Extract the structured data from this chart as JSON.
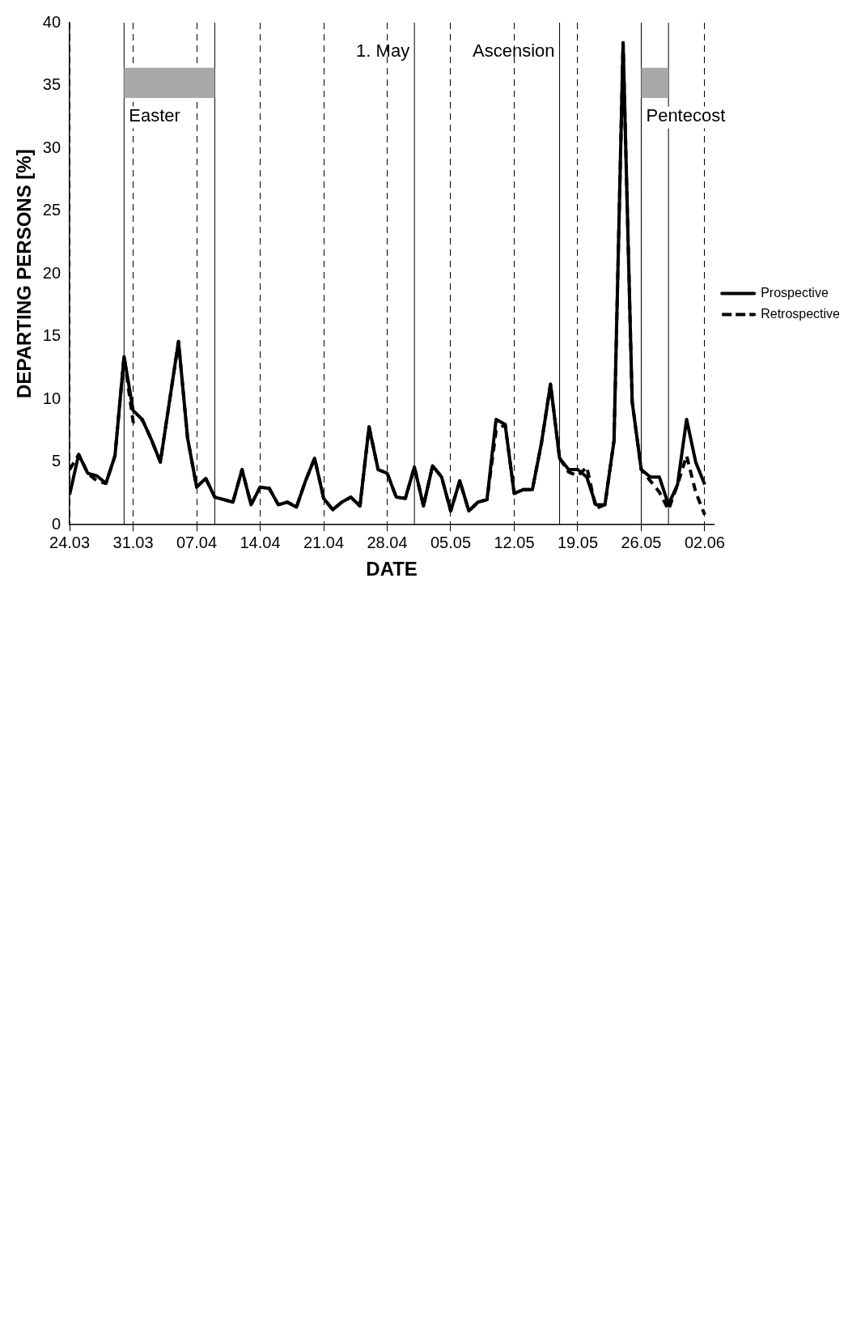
{
  "chart_data": {
    "type": "line",
    "xlabel": "DATE",
    "ylabel": "DEPARTING PERSONS [%]",
    "x": [
      "--03-24",
      "--03-25",
      "--03-26",
      "--03-27",
      "--03-28",
      "--03-29",
      "--03-30",
      "--03-31",
      "--04-01",
      "--04-02",
      "--04-03",
      "--04-04",
      "--04-05",
      "--04-06",
      "--04-07",
      "--04-08",
      "--04-09",
      "--04-10",
      "--04-11",
      "--04-12",
      "--04-13",
      "--04-14",
      "--04-15",
      "--04-16",
      "--04-17",
      "--04-18",
      "--04-19",
      "--04-20",
      "--04-21",
      "--04-22",
      "--04-23",
      "--04-24",
      "--04-25",
      "--04-26",
      "--04-27",
      "--04-28",
      "--04-29",
      "--04-30",
      "--05-01",
      "--05-02",
      "--05-03",
      "--05-04",
      "--05-05",
      "--05-06",
      "--05-07",
      "--05-08",
      "--05-09",
      "--05-10",
      "--05-11",
      "--05-12",
      "--05-13",
      "--05-14",
      "--05-15",
      "--05-16",
      "--05-17",
      "--05-18",
      "--05-19",
      "--05-20",
      "--05-21",
      "--05-22",
      "--05-23",
      "--05-24",
      "--05-25",
      "--05-26",
      "--05-27",
      "--05-28",
      "--05-29",
      "--05-30",
      "--05-31",
      "--06-01",
      "--06-02"
    ],
    "series": [
      {
        "name": "Prospective",
        "color": "#000000",
        "line_style": "solid",
        "values": [
          2.4,
          5.6,
          4.1,
          3.9,
          3.3,
          5.5,
          13.4,
          9.1,
          8.4,
          6.8,
          5.0,
          9.8,
          14.6,
          6.9,
          3.0,
          3.7,
          2.2,
          2.0,
          1.8,
          4.4,
          1.6,
          3.0,
          2.9,
          1.6,
          1.8,
          1.4,
          3.5,
          5.3,
          2.1,
          1.2,
          1.8,
          2.2,
          1.5,
          7.8,
          4.4,
          4.1,
          2.2,
          2.1,
          4.6,
          1.5,
          4.7,
          3.8,
          1.1,
          3.5,
          1.1,
          1.8,
          2.0,
          8.4,
          8.0,
          2.5,
          2.8,
          2.8,
          6.5,
          11.2,
          5.3,
          4.4,
          4.4,
          3.8,
          1.6,
          1.6,
          6.7,
          38.4,
          9.8,
          4.4,
          3.8,
          3.8,
          1.6,
          3.2,
          8.4,
          5.0,
          3.2
        ]
      },
      {
        "name": "Retrospective",
        "color": "#000000",
        "line_style": "dashed",
        "values": [
          4.4,
          5.6,
          4.1,
          3.5,
          3.3,
          5.5,
          13.4,
          8.2,
          8.4,
          6.8,
          5.0,
          9.8,
          14.6,
          6.9,
          3.0,
          3.7,
          2.2,
          2.0,
          1.8,
          4.4,
          1.6,
          3.0,
          2.9,
          1.6,
          1.8,
          1.4,
          3.5,
          5.3,
          2.1,
          1.2,
          1.8,
          2.2,
          1.5,
          7.8,
          4.4,
          4.1,
          2.2,
          2.1,
          4.6,
          1.5,
          4.7,
          3.8,
          1.1,
          3.5,
          1.1,
          1.8,
          2.0,
          7.5,
          8.0,
          2.5,
          2.8,
          2.8,
          6.5,
          11.2,
          5.3,
          4.2,
          3.9,
          4.6,
          1.3,
          1.6,
          6.7,
          38.4,
          9.8,
          4.4,
          3.5,
          2.6,
          1.2,
          3.2,
          5.5,
          2.6,
          0.8
        ]
      }
    ],
    "xlim": [
      "--03-24",
      "--06-03"
    ],
    "xticks": [
      {
        "value": "--03-24",
        "label": "24.03"
      },
      {
        "value": "--03-31",
        "label": "31.03"
      },
      {
        "value": "--04-07",
        "label": "07.04"
      },
      {
        "value": "--04-14",
        "label": "14.04"
      },
      {
        "value": "--04-21",
        "label": "21.04"
      },
      {
        "value": "--04-28",
        "label": "28.04"
      },
      {
        "value": "--05-05",
        "label": "05.05"
      },
      {
        "value": "--05-12",
        "label": "12.05"
      },
      {
        "value": "--05-19",
        "label": "19.05"
      },
      {
        "value": "--05-26",
        "label": "26.05"
      },
      {
        "value": "--06-02",
        "label": "02.06"
      }
    ],
    "ylim": [
      0,
      40
    ],
    "yticks": [
      0,
      5,
      10,
      15,
      20,
      25,
      30,
      35,
      40
    ],
    "grid": "x",
    "legend": "right",
    "marker": "none",
    "ref_lines": [
      {
        "axis": "x",
        "value": "--05-01",
        "label": "1. May",
        "color": "#000000"
      },
      {
        "axis": "x",
        "value": "--05-17",
        "label": "Ascension",
        "color": "#000000"
      }
    ],
    "bands": [
      {
        "axis": "x",
        "from": "--03-30",
        "to": "--04-09",
        "label": "Easter",
        "color": "#a8a8a8"
      },
      {
        "axis": "x",
        "from": "--05-26",
        "to": "--05-29",
        "label": "Pentecost",
        "color": "#a8a8a8"
      }
    ]
  }
}
